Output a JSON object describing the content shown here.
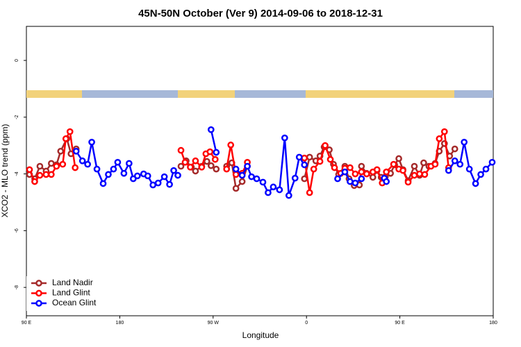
{
  "chart_data": {
    "type": "line",
    "title": "45N-50N October (Ver 9)   2014-09-06 to 2018-12-31",
    "x_label": "Longitude",
    "y_label": "XCO2 - MLO trend (ppm)",
    "xlim": [
      90,
      540
    ],
    "xticks": [
      {
        "value": 90,
        "label": "90 E"
      },
      {
        "value": 180,
        "label": "180"
      },
      {
        "value": 270,
        "label": "90 W"
      },
      {
        "value": 360,
        "label": "0"
      },
      {
        "value": 450,
        "label": "90 E"
      },
      {
        "value": 540,
        "label": "180"
      }
    ],
    "ylim": [
      -9,
      1.2
    ],
    "yticks": [
      -8,
      -6,
      -4,
      -2,
      0
    ],
    "legend": "bottom-left",
    "series": [
      {
        "name": "Land Nadir",
        "color": "#a52a2a",
        "x": [
          93,
          98,
          103,
          109,
          114,
          119,
          123,
          129,
          133,
          138,
          null,
          239,
          244,
          249,
          253,
          259,
          264,
          268,
          273,
          null,
          283,
          288,
          292,
          298,
          303,
          null,
          358,
          363,
          369,
          373,
          377,
          382,
          386,
          391,
          397,
          401,
          406,
          411,
          413,
          418,
          424,
          428,
          432,
          436,
          441,
          445,
          449,
          453,
          458,
          464,
          469,
          473,
          478,
          484,
          488,
          493,
          498,
          503
        ],
        "values": [
          -4.02,
          -4.17,
          -3.73,
          -3.9,
          -3.63,
          -3.68,
          -3.2,
          -2.76,
          -3.29,
          -3.12,
          null,
          -3.73,
          -3.54,
          -3.76,
          -3.9,
          -3.73,
          -3.56,
          -3.71,
          -3.83,
          null,
          -3.73,
          -3.61,
          -4.51,
          -4.27,
          -3.73,
          null,
          -4.17,
          -3.41,
          -3.54,
          -3.37,
          -3.05,
          -3.15,
          -3.66,
          -4.02,
          -3.73,
          -4.17,
          -4.41,
          -4.39,
          -3.73,
          -3.98,
          -4.12,
          -3.88,
          -4.12,
          -4.1,
          -3.98,
          -3.68,
          -3.46,
          -3.85,
          -4.24,
          -3.73,
          -4.05,
          -3.61,
          -3.73,
          -3.63,
          -3.2,
          -2.93,
          -3.37,
          -3.12
        ]
      },
      {
        "name": "Land Glint",
        "color": "#ff0000",
        "x": [
          93,
          98,
          103,
          109,
          114,
          119,
          125,
          128,
          132,
          137,
          null,
          239,
          243,
          248,
          253,
          259,
          263,
          267,
          272,
          null,
          283,
          287,
          292,
          298,
          303,
          null,
          358,
          363,
          367,
          373,
          378,
          383,
          387,
          393,
          397,
          402,
          407,
          413,
          418,
          424,
          428,
          433,
          437,
          444,
          449,
          453,
          458,
          464,
          469,
          474,
          480,
          484,
          488,
          493,
          497
        ],
        "values": [
          -3.85,
          -4.27,
          -4.05,
          -4.02,
          -4.02,
          -3.73,
          -3.66,
          -2.76,
          -2.51,
          -3.78,
          null,
          -3.17,
          -3.59,
          -3.76,
          -3.54,
          -3.76,
          -3.29,
          -3.22,
          -3.49,
          null,
          -3.83,
          -2.98,
          -4.02,
          -3.98,
          -3.59,
          null,
          -3.44,
          -4.66,
          -3.83,
          -3.56,
          -3.0,
          -3.49,
          -3.78,
          -3.98,
          -3.8,
          -3.78,
          -4.0,
          -3.93,
          -4.0,
          -3.93,
          -3.85,
          -4.32,
          -3.93,
          -3.66,
          -3.83,
          -3.88,
          -4.29,
          -4.05,
          -4.0,
          -4.02,
          -3.73,
          -3.66,
          -2.76,
          -2.51,
          -3.78
        ]
      },
      {
        "name": "Ocean Glint",
        "color": "#0000ff",
        "x": [
          138,
          144,
          149,
          153,
          158,
          164,
          169,
          174,
          178,
          184,
          189,
          193,
          197,
          203,
          207,
          212,
          217,
          223,
          228,
          232,
          236,
          null,
          268,
          273,
          null,
          292,
          298,
          303,
          307,
          312,
          318,
          323,
          328,
          334,
          339,
          343,
          349,
          353,
          358,
          null,
          390,
          397,
          402,
          407,
          413,
          null,
          435,
          437,
          null,
          497,
          503,
          508,
          512,
          517,
          523,
          528,
          533,
          539
        ],
        "values": [
          -3.2,
          -3.54,
          -3.66,
          -2.88,
          -3.83,
          -4.34,
          -4.02,
          -3.83,
          -3.59,
          -3.98,
          -3.63,
          -4.17,
          -4.07,
          -4.0,
          -4.07,
          -4.39,
          -4.32,
          -4.1,
          -4.37,
          -3.88,
          -4.05,
          null,
          -2.44,
          -3.24,
          null,
          -3.83,
          -4.05,
          -3.73,
          -4.1,
          -4.17,
          -4.29,
          -4.66,
          -4.46,
          -4.56,
          -2.73,
          -4.76,
          -4.15,
          -3.41,
          -3.68,
          null,
          -4.17,
          -3.93,
          -4.27,
          -4.32,
          -4.17,
          null,
          -4.15,
          -4.27,
          null,
          -3.88,
          -3.54,
          -3.66,
          -2.88,
          -3.83,
          -4.34,
          -4.02,
          -3.83,
          -3.59
        ]
      }
    ]
  }
}
